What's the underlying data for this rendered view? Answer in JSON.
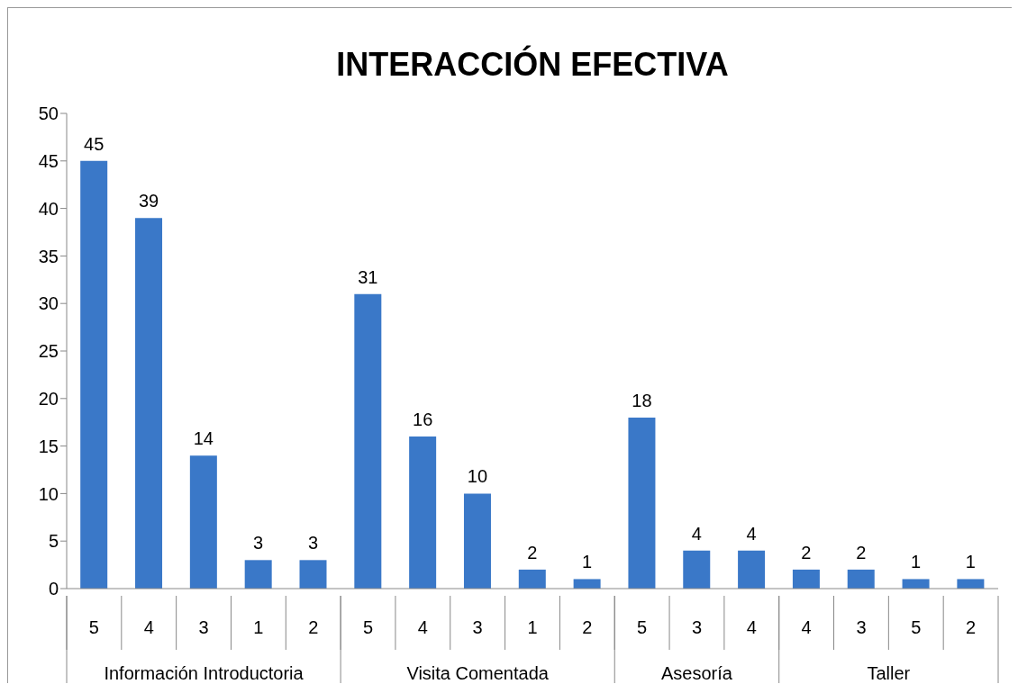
{
  "chart_data": {
    "type": "bar",
    "title": "INTERACCIÓN EFECTIVA",
    "categories": [
      "5",
      "4",
      "3",
      "1",
      "2",
      "5",
      "4",
      "3",
      "1",
      "2",
      "5",
      "3",
      "4",
      "4",
      "3",
      "5",
      "2"
    ],
    "series": [
      {
        "color": "#3a78c8",
        "values": [
          45,
          39,
          14,
          3,
          3,
          null,
          null,
          null,
          null,
          null,
          null,
          null,
          null,
          null,
          null,
          null,
          null
        ]
      },
      {
        "color": "#3a78c8",
        "values": [
          null,
          null,
          null,
          null,
          null,
          31,
          16,
          10,
          2,
          1,
          null,
          null,
          null,
          null,
          null,
          null,
          null
        ]
      },
      {
        "color": "#3a78c8",
        "values": [
          null,
          null,
          null,
          null,
          null,
          null,
          null,
          null,
          null,
          null,
          18,
          4,
          4,
          null,
          null,
          null,
          null
        ]
      },
      {
        "color": "#3a78c8",
        "values": [
          null,
          null,
          null,
          null,
          null,
          null,
          null,
          null,
          null,
          null,
          null,
          null,
          null,
          2,
          2,
          1,
          1
        ]
      }
    ],
    "annotations": [
      "Información Introductoria",
      "Visita Comentada",
      "Asesoría",
      "Taller"
    ],
    "ylim": [
      0,
      50
    ],
    "yticks": [
      0,
      5,
      10,
      15,
      20,
      25,
      30,
      35,
      40,
      45,
      50
    ],
    "data_labels": true
  }
}
